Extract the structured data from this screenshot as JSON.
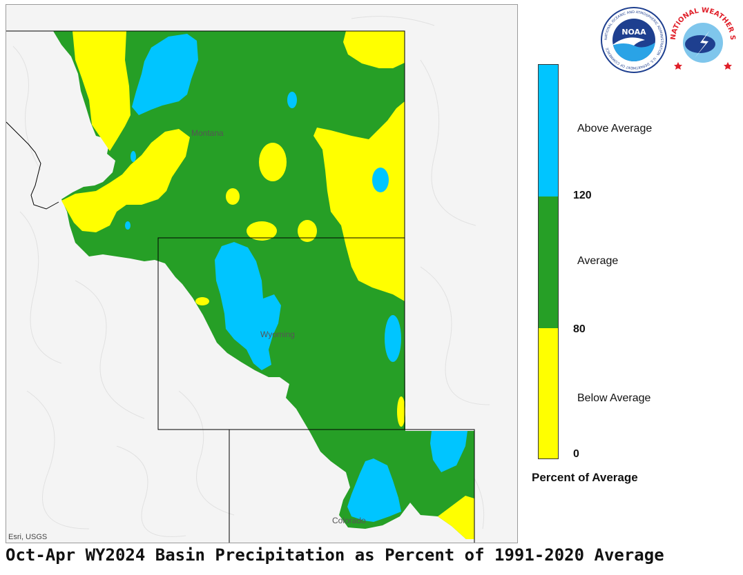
{
  "caption": "Oct-Apr WY2024 Basin Precipitation as Percent of 1991-2020 Average",
  "map": {
    "attribution": "Esri, USGS",
    "state_labels": [
      "Montana",
      "Wyoming",
      "Colorado"
    ]
  },
  "legend": {
    "title": "Percent of Average",
    "categories": [
      {
        "label": "Above Average",
        "color": "#00c5ff"
      },
      {
        "label": "Average",
        "color": "#269f26"
      },
      {
        "label": "Below Average",
        "color": "#ffff00"
      }
    ],
    "breaks": [
      "120",
      "80",
      "0"
    ]
  },
  "logos": {
    "noaa_text": "NOAA",
    "noaa_ring_text": "NATIONAL OCEANIC AND ATMOSPHERIC ADMINISTRATION · U.S. DEPARTMENT OF COMMERCE",
    "nws_ring_text": "NATIONAL WEATHER SERVICE"
  },
  "colors": {
    "above": "#00c5ff",
    "average": "#269f26",
    "below": "#ffff00",
    "terrain": "#f4f4f4",
    "noaa_blue": "#1e3f8f",
    "nws_red": "#e0202a"
  }
}
